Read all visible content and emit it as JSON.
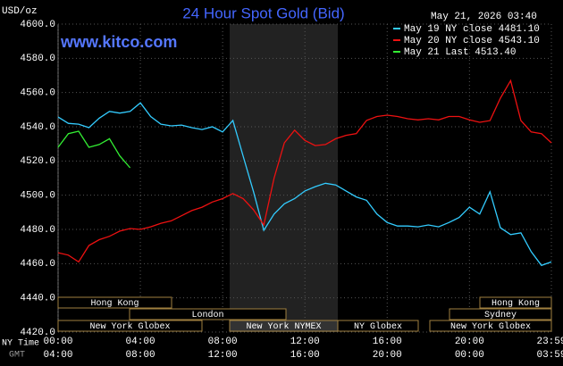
{
  "chart_data": {
    "type": "line",
    "title": "24 Hour Spot Gold (Bid)",
    "watermark": "www.kitco.com",
    "ylabel": "USD/oz",
    "timestamp": "May 21, 2026 03:40",
    "xlabel": "NY Time",
    "x2label": "GMT",
    "legend": "top-right",
    "grid": true,
    "xlim": [
      0,
      23.983
    ],
    "ylim": [
      4420,
      4600
    ],
    "xticks": [
      {
        "value": 0,
        "label": "00:00"
      },
      {
        "value": 4,
        "label": "04:00"
      },
      {
        "value": 8,
        "label": "08:00"
      },
      {
        "value": 12,
        "label": "12:00"
      },
      {
        "value": 16,
        "label": "16:00"
      },
      {
        "value": 20,
        "label": "20:00"
      },
      {
        "value": 23.983,
        "label": "23:59"
      }
    ],
    "gmt_labels": [
      "04:00",
      "08:00",
      "12:00",
      "16:00",
      "20:00",
      "00:00",
      "03:59"
    ],
    "yticks": [
      {
        "value": 4600,
        "label": "4600.0"
      },
      {
        "value": 4580,
        "label": "4580.0"
      },
      {
        "value": 4560,
        "label": "4560.0"
      },
      {
        "value": 4540,
        "label": "4540.0"
      },
      {
        "value": 4520,
        "label": "4520.0"
      },
      {
        "value": 4500,
        "label": "4500.0"
      },
      {
        "value": 4480,
        "label": "4480.0"
      },
      {
        "value": 4460,
        "label": "4460.0"
      },
      {
        "value": 4440,
        "label": "4440.0"
      },
      {
        "value": 4420,
        "label": "4420.0"
      }
    ],
    "sessions": [
      "Hong Kong",
      "Hong Kong",
      "London",
      "Sydney",
      "New York Globex",
      "New York NYMEX",
      "NY Globex",
      "New York Globex"
    ],
    "x": [
      0,
      0.5,
      1,
      1.5,
      2,
      2.5,
      3,
      3.5,
      4,
      4.5,
      5,
      5.5,
      6,
      6.5,
      7,
      7.5,
      8,
      8.5,
      9,
      9.5,
      10,
      10.5,
      11,
      11.5,
      12,
      12.5,
      13,
      13.5,
      14,
      14.5,
      15,
      15.5,
      16,
      16.5,
      17,
      17.5,
      18,
      18.5,
      19,
      19.5,
      20,
      20.5,
      21,
      21.5,
      22,
      22.5,
      23,
      23.5,
      23.983
    ],
    "series": [
      {
        "name": "May 19 NY close 4481.10",
        "color": "#33ccff",
        "values": [
          4545.7,
          4542,
          4541.5,
          4539.5,
          4545,
          4549,
          4548,
          4549,
          4554,
          4546,
          4541.5,
          4540.5,
          4541,
          4539.5,
          4538.4,
          4540,
          4537,
          4543.7,
          4522.8,
          4502,
          4479.5,
          4489,
          4495,
          4498,
          4502.5,
          4505,
          4507,
          4506,
          4502.5,
          4499,
          4497,
          4489,
          4484,
          4482,
          4482,
          4481.5,
          4482.6,
          4481.5,
          4484,
          4487,
          4493,
          4489,
          4502,
          4481,
          4477,
          4478,
          4467,
          4459,
          4461
        ]
      },
      {
        "name": "May 20 NY close 4543.10",
        "color": "#ee1111",
        "values": [
          4466.4,
          4465,
          4461,
          4470.6,
          4474,
          4476,
          4479,
          4480.5,
          4480,
          4481.5,
          4483.6,
          4485,
          4488,
          4491,
          4493,
          4496,
          4498,
          4501,
          4498,
          4491.5,
          4482.6,
          4510,
          4530.6,
          4538,
          4532,
          4529,
          4529.6,
          4533,
          4535,
          4536,
          4543.7,
          4546,
          4546.8,
          4546,
          4544.7,
          4544,
          4544.7,
          4544,
          4546,
          4546,
          4544,
          4542.6,
          4543.6,
          4556.7,
          4567,
          4543.6,
          4537,
          4536,
          4530.6
        ]
      },
      {
        "name": "May 21 Last 4513.40",
        "color": "#33ee33",
        "values": [
          4528,
          4536,
          4537.4,
          4528,
          4529.6,
          4533,
          4523,
          4516,
          null,
          null,
          null,
          null,
          null,
          null,
          null,
          null,
          null,
          null,
          null,
          null,
          null,
          null,
          null,
          null,
          null,
          null,
          null,
          null,
          null,
          null,
          null,
          null,
          null,
          null,
          null,
          null,
          null,
          null,
          null,
          null,
          null,
          null,
          null,
          null,
          null,
          null,
          null,
          null,
          null
        ]
      }
    ]
  }
}
